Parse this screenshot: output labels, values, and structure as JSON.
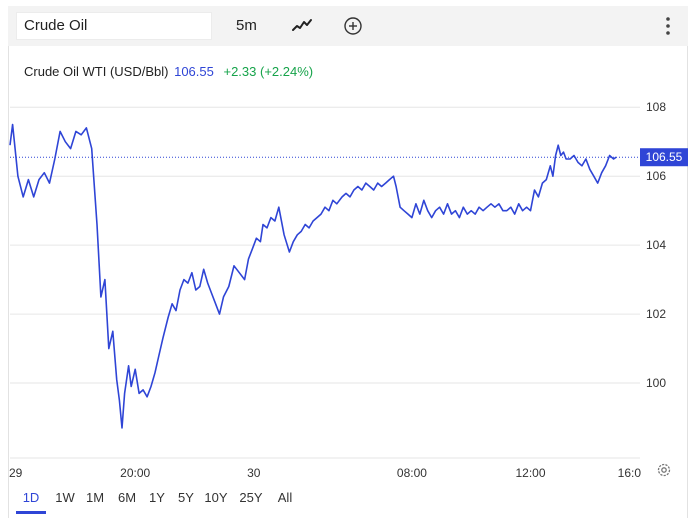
{
  "toolbar": {
    "symbol": "Crude Oil",
    "interval": "5m",
    "icons": [
      "line-chart-type-icon",
      "add-comparison-icon",
      "more-menu-icon"
    ]
  },
  "legend": {
    "name": "Crude Oil WTI (USD/Bbl)",
    "price": "106.55",
    "change": "+2.33 (+2.24%)",
    "price_color": "#2f45d6",
    "change_color": "#16a34a"
  },
  "range_selector": {
    "items": [
      "1D",
      "1W",
      "1M",
      "6M",
      "1Y",
      "5Y",
      "10Y",
      "25Y",
      "All"
    ],
    "active": "1D"
  },
  "chart_data": {
    "type": "line",
    "title": "",
    "xlabel": "",
    "ylabel": "",
    "ylim": [
      98,
      108.5
    ],
    "y_ticks": [
      100,
      102,
      104,
      106,
      108
    ],
    "x_range": [
      0,
      23.6
    ],
    "x_ticks": [
      {
        "x": 0,
        "label": "29"
      },
      {
        "x": 4.75,
        "label": "20:00"
      },
      {
        "x": 9.25,
        "label": "30"
      },
      {
        "x": 15.25,
        "label": "08:00"
      },
      {
        "x": 19.75,
        "label": "12:00"
      },
      {
        "x": 23.5,
        "label": "16:0"
      }
    ],
    "last_price": 106.55,
    "last_price_label": "106.55",
    "grid": "horizontal",
    "line_color": "#2f45d6",
    "series": [
      {
        "values": [
          [
            0,
            106.9
          ],
          [
            0.1,
            107.5
          ],
          [
            0.3,
            106.0
          ],
          [
            0.5,
            105.4
          ],
          [
            0.7,
            105.9
          ],
          [
            0.9,
            105.4
          ],
          [
            1.1,
            105.9
          ],
          [
            1.3,
            106.1
          ],
          [
            1.5,
            105.8
          ],
          [
            1.7,
            106.5
          ],
          [
            1.9,
            107.3
          ],
          [
            2.1,
            107.0
          ],
          [
            2.3,
            106.8
          ],
          [
            2.5,
            107.3
          ],
          [
            2.7,
            107.2
          ],
          [
            2.9,
            107.4
          ],
          [
            3.1,
            106.8
          ],
          [
            3.3,
            104.6
          ],
          [
            3.45,
            102.5
          ],
          [
            3.6,
            103.0
          ],
          [
            3.75,
            101.0
          ],
          [
            3.9,
            101.5
          ],
          [
            4.05,
            100.1
          ],
          [
            4.15,
            99.5
          ],
          [
            4.25,
            98.7
          ],
          [
            4.35,
            99.7
          ],
          [
            4.5,
            100.5
          ],
          [
            4.6,
            99.9
          ],
          [
            4.75,
            100.4
          ],
          [
            4.9,
            99.7
          ],
          [
            5.05,
            99.8
          ],
          [
            5.2,
            99.6
          ],
          [
            5.35,
            99.9
          ],
          [
            5.5,
            100.3
          ],
          [
            5.65,
            100.8
          ],
          [
            5.8,
            101.3
          ],
          [
            6.0,
            101.9
          ],
          [
            6.15,
            102.3
          ],
          [
            6.3,
            102.1
          ],
          [
            6.45,
            102.7
          ],
          [
            6.6,
            103.0
          ],
          [
            6.75,
            102.9
          ],
          [
            6.9,
            103.2
          ],
          [
            7.05,
            102.7
          ],
          [
            7.2,
            102.8
          ],
          [
            7.35,
            103.3
          ],
          [
            7.5,
            102.9
          ],
          [
            7.65,
            102.6
          ],
          [
            7.8,
            102.3
          ],
          [
            7.95,
            102.0
          ],
          [
            8.1,
            102.5
          ],
          [
            8.3,
            102.8
          ],
          [
            8.5,
            103.4
          ],
          [
            8.7,
            103.2
          ],
          [
            8.9,
            103.0
          ],
          [
            9.05,
            103.6
          ],
          [
            9.2,
            103.9
          ],
          [
            9.35,
            104.2
          ],
          [
            9.5,
            104.1
          ],
          [
            9.6,
            104.6
          ],
          [
            9.75,
            104.5
          ],
          [
            9.9,
            104.8
          ],
          [
            10.05,
            104.7
          ],
          [
            10.2,
            105.1
          ],
          [
            10.4,
            104.3
          ],
          [
            10.6,
            103.8
          ],
          [
            10.75,
            104.1
          ],
          [
            10.9,
            104.3
          ],
          [
            11.05,
            104.4
          ],
          [
            11.2,
            104.6
          ],
          [
            11.35,
            104.5
          ],
          [
            11.5,
            104.7
          ],
          [
            11.65,
            104.8
          ],
          [
            11.8,
            104.9
          ],
          [
            11.95,
            105.1
          ],
          [
            12.1,
            105.0
          ],
          [
            12.25,
            105.3
          ],
          [
            12.4,
            105.2
          ],
          [
            12.6,
            105.4
          ],
          [
            12.75,
            105.5
          ],
          [
            12.9,
            105.4
          ],
          [
            13.05,
            105.6
          ],
          [
            13.2,
            105.7
          ],
          [
            13.35,
            105.6
          ],
          [
            13.5,
            105.8
          ],
          [
            13.65,
            105.7
          ],
          [
            13.8,
            105.6
          ],
          [
            13.95,
            105.8
          ],
          [
            14.1,
            105.7
          ],
          [
            14.25,
            105.8
          ],
          [
            14.4,
            105.9
          ],
          [
            14.55,
            106.0
          ],
          [
            14.65,
            105.7
          ],
          [
            14.8,
            105.1
          ],
          [
            14.95,
            105.0
          ],
          [
            15.1,
            104.9
          ],
          [
            15.25,
            104.8
          ],
          [
            15.4,
            105.2
          ],
          [
            15.55,
            104.9
          ],
          [
            15.7,
            105.3
          ],
          [
            15.85,
            105.0
          ],
          [
            16.0,
            104.8
          ],
          [
            16.15,
            105.0
          ],
          [
            16.3,
            105.1
          ],
          [
            16.45,
            104.9
          ],
          [
            16.6,
            105.2
          ],
          [
            16.75,
            104.9
          ],
          [
            16.9,
            105.0
          ],
          [
            17.05,
            104.8
          ],
          [
            17.2,
            105.1
          ],
          [
            17.35,
            104.9
          ],
          [
            17.5,
            105.0
          ],
          [
            17.65,
            104.9
          ],
          [
            17.8,
            105.1
          ],
          [
            17.95,
            105.0
          ],
          [
            18.1,
            105.1
          ],
          [
            18.25,
            105.2
          ],
          [
            18.4,
            105.1
          ],
          [
            18.55,
            105.2
          ],
          [
            18.7,
            105.0
          ],
          [
            18.85,
            105.0
          ],
          [
            19.0,
            105.1
          ],
          [
            19.15,
            104.9
          ],
          [
            19.3,
            105.2
          ],
          [
            19.45,
            105.0
          ],
          [
            19.6,
            105.1
          ],
          [
            19.75,
            105.0
          ],
          [
            19.9,
            105.6
          ],
          [
            20.05,
            105.4
          ],
          [
            20.2,
            105.8
          ],
          [
            20.35,
            105.9
          ],
          [
            20.5,
            106.3
          ],
          [
            20.6,
            106.0
          ],
          [
            20.7,
            106.6
          ],
          [
            20.8,
            106.9
          ],
          [
            20.9,
            106.6
          ],
          [
            21.0,
            106.7
          ],
          [
            21.1,
            106.5
          ],
          [
            21.25,
            106.5
          ],
          [
            21.4,
            106.6
          ],
          [
            21.55,
            106.4
          ],
          [
            21.7,
            106.3
          ],
          [
            21.85,
            106.5
          ],
          [
            22.0,
            106.2
          ],
          [
            22.15,
            106.0
          ],
          [
            22.3,
            105.8
          ],
          [
            22.45,
            106.1
          ],
          [
            22.6,
            106.3
          ],
          [
            22.75,
            106.6
          ],
          [
            22.9,
            106.5
          ],
          [
            23.0,
            106.55
          ]
        ]
      }
    ]
  }
}
